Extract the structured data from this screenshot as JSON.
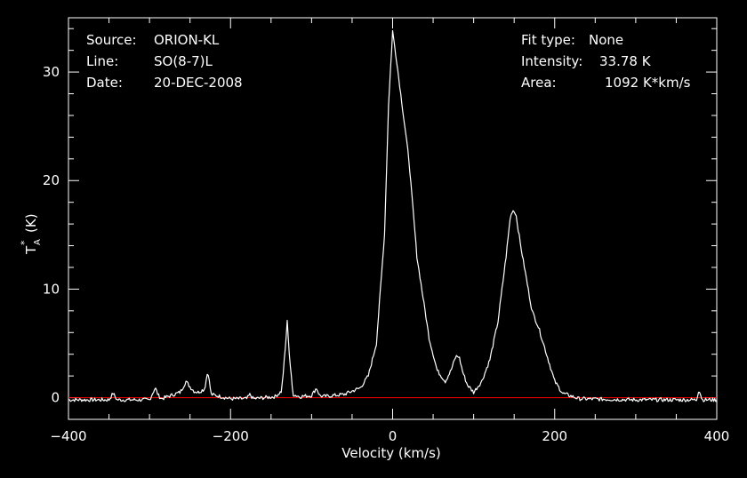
{
  "info": {
    "left": [
      {
        "key": "Source:",
        "value": "ORION-KL"
      },
      {
        "key": "Line:",
        "value": "SO(8-7)L"
      },
      {
        "key": "Date:",
        "value": "20-DEC-2008"
      }
    ],
    "right": [
      {
        "key": "Fit type:",
        "value": "None"
      },
      {
        "key": "Intensity:",
        "value": "33.78 K"
      },
      {
        "key": "Area:",
        "value": "1092 K*km/s"
      }
    ]
  },
  "chart_data": {
    "type": "line",
    "xlabel": "Velocity (km/s)",
    "ylabel_main": "T",
    "ylabel_sub": "A",
    "ylabel_sup": "*",
    "ylabel_unit": "(K)",
    "xlim": [
      -400,
      400
    ],
    "ylim": [
      -2,
      35
    ],
    "x_ticks": [
      -400,
      -200,
      0,
      200,
      400
    ],
    "y_ticks": [
      0,
      10,
      20,
      30
    ],
    "grid": false,
    "colors": {
      "spectrum": "#ffffff",
      "baseline": "#ff0000",
      "axes": "#ffffff",
      "background": "#000000"
    },
    "series": [
      {
        "x": [
          -400,
          -350,
          -345,
          -340,
          -300,
          -293,
          -289,
          -285,
          -262,
          -255,
          -250,
          -245,
          -240,
          -232,
          -228,
          -224,
          -200,
          -180,
          -176,
          -172,
          -145,
          -137,
          -133,
          -130,
          -127,
          -123,
          -115,
          -100,
          -94,
          -90,
          -86,
          -60,
          -40,
          -30,
          -20,
          -10,
          -5,
          0,
          5,
          10,
          20,
          30,
          45,
          55,
          65,
          72,
          78,
          82,
          86,
          92,
          100,
          110,
          120,
          130,
          140,
          145,
          148,
          152,
          158,
          165,
          172,
          180,
          190,
          200,
          210,
          230,
          300,
          375,
          378,
          382,
          400
        ],
        "values": [
          -0.2,
          -0.2,
          0.4,
          -0.2,
          -0.2,
          0.9,
          0.2,
          -0.1,
          0.5,
          1.5,
          1.0,
          0.6,
          0.5,
          0.8,
          2.5,
          0.3,
          -0.1,
          -0.1,
          0.3,
          -0.1,
          0.1,
          0.6,
          4.0,
          7.0,
          3.5,
          0.3,
          0.1,
          0.2,
          0.9,
          0.2,
          0.1,
          0.3,
          0.9,
          2.0,
          5.0,
          15.0,
          27.0,
          33.78,
          31.0,
          28.0,
          22.0,
          13.0,
          5.5,
          2.5,
          1.5,
          2.5,
          3.8,
          3.8,
          2.5,
          1.2,
          0.5,
          1.5,
          3.5,
          7.0,
          13.0,
          16.5,
          17.3,
          17.0,
          14.0,
          11.0,
          8.0,
          6.5,
          4.0,
          1.5,
          0.4,
          -0.1,
          -0.2,
          -0.2,
          0.8,
          -0.2,
          -0.2
        ]
      }
    ]
  }
}
